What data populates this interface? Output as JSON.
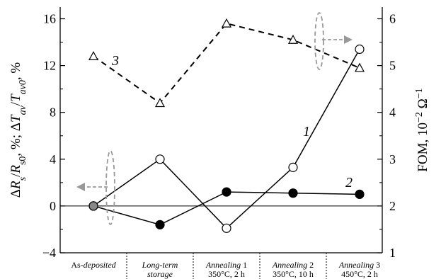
{
  "chart_data": {
    "type": "line",
    "categories": [
      {
        "lines": [
          {
            "parts": [
              {
                "t": "As-",
                "i": false
              },
              {
                "t": "deposited",
                "i": true
              }
            ]
          }
        ]
      },
      {
        "lines": [
          {
            "parts": [
              {
                "t": "Long-term",
                "i": true
              }
            ]
          },
          {
            "parts": [
              {
                "t": "storage",
                "i": true
              }
            ]
          }
        ]
      },
      {
        "lines": [
          {
            "parts": [
              {
                "t": "Annealing",
                "i": true
              },
              {
                "t": " 1",
                "i": false
              }
            ]
          },
          {
            "parts": [
              {
                "t": "350°C, 2 h",
                "i": false
              }
            ]
          }
        ]
      },
      {
        "lines": [
          {
            "parts": [
              {
                "t": "Annealing",
                "i": true
              },
              {
                "t": " 2",
                "i": false
              }
            ]
          },
          {
            "parts": [
              {
                "t": "350°C, 10 h",
                "i": false
              }
            ]
          }
        ]
      },
      {
        "lines": [
          {
            "parts": [
              {
                "t": "Annealing",
                "i": true
              },
              {
                "t": " 3",
                "i": false
              }
            ]
          },
          {
            "parts": [
              {
                "t": "450°C, 2 h",
                "i": false
              }
            ]
          }
        ]
      }
    ],
    "y_left": {
      "label": "ΔRs/Rs0, %; ΔTav/Tav0, %",
      "ylim": [
        -4,
        17
      ],
      "ticks": [
        -4,
        0,
        4,
        8,
        12,
        16
      ],
      "tick_labels": [
        "−4",
        "0",
        "4",
        "8",
        "12",
        "16"
      ]
    },
    "y_right": {
      "label": "FOM, 10−2 Ω−1",
      "ylim": [
        1,
        6.25
      ],
      "ticks": [
        1,
        2,
        3,
        4,
        5,
        6
      ],
      "tick_labels": [
        "1",
        "2",
        "3",
        "4",
        "5",
        "6"
      ]
    },
    "series": [
      {
        "name": "1",
        "axis": "left",
        "marker": "open-circle",
        "line": "solid",
        "values": [
          0,
          4.0,
          -1.9,
          3.3,
          13.4
        ]
      },
      {
        "name": "2",
        "axis": "left",
        "marker": "filled-circle",
        "line": "solid",
        "values": [
          0,
          -1.6,
          1.2,
          1.1,
          1.0
        ]
      },
      {
        "name": "3",
        "axis": "right",
        "marker": "open-triangle",
        "line": "dashed",
        "values": [
          5.2,
          4.2,
          5.9,
          5.55,
          4.95
        ]
      }
    ],
    "first_point_marker": "gray-filled-circle",
    "zero_line": true,
    "grid": false
  }
}
